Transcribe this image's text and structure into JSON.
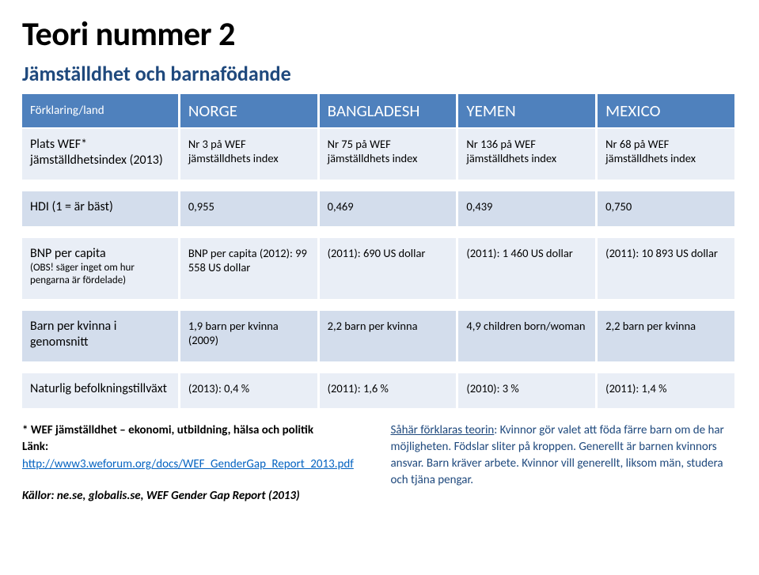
{
  "title": "Teori nummer 2",
  "subtitle": "Jämställdhet och barnafödande",
  "header": {
    "col0": "Förklaring/land",
    "cols": [
      "NORGE",
      "BANGLADESH",
      "YEMEN",
      "MEXICO"
    ]
  },
  "rows": [
    {
      "label": "Plats WEF* jämställdhetsindex (2013)",
      "label_small": "",
      "cells": [
        "Nr 3 på WEF jämställdhets index",
        "Nr 75 på WEF jämställdhets index",
        "Nr 136 på WEF jämställdhets index",
        "Nr 68 på WEF jämställdhets index"
      ],
      "shade": "lt"
    },
    {
      "label": "HDI (1 = är bäst)",
      "label_small": "",
      "cells": [
        "0,955",
        "0,469",
        "0,439",
        "0,750"
      ],
      "shade": "dk"
    },
    {
      "label": "BNP per capita",
      "label_small": "(OBS! säger inget om hur pengarna är fördelade)",
      "cells": [
        "BNP per capita (2012): 99 558 US dollar",
        "(2011): 690 US dollar",
        "(2011): 1 460 US dollar",
        "(2011): 10 893 US dollar"
      ],
      "shade": "lt"
    },
    {
      "label": "Barn per kvinna i genomsnitt",
      "label_small": "",
      "cells": [
        "1,9 barn per kvinna (2009)",
        "2,2 barn per kvinna",
        "4,9 children born/woman",
        "2,2 barn per kvinna"
      ],
      "shade": "dk"
    },
    {
      "label": "Naturlig befolkningstillväxt",
      "label_small": "",
      "cells": [
        "(2013): 0,4 %",
        " (2011): 1,6 %",
        "(2010): 3 %",
        " (2011): 1,4 %"
      ],
      "shade": "lt"
    }
  ],
  "footer": {
    "note_bold_prefix": "*",
    "note_bold": " WEF jämställdhet – ekonomi, utbildning, hälsa och politik",
    "link_label": "Länk: ",
    "link_text": "http://www3.weforum.org/docs/WEF_GenderGap_Report_2013.pdf",
    "sources_label": "Källor: ne.se, globalis.se, WEF Gender Gap Report (2013)",
    "theory_lead": "Såhär förklaras teorin",
    "theory_text": ": Kvinnor gör valet att föda färre barn om de har möjligheten. Födslar sliter på kroppen. Generellt är barnen kvinnors ansvar. Barn kräver arbete. Kvinnor vill generellt, liksom män, studera och tjäna pengar."
  },
  "colors": {
    "header_bg": "#4f81bd",
    "light_row": "#e9eef6",
    "dark_row": "#d3ddec",
    "subtitle": "#1f497d",
    "link": "#0563c1"
  }
}
